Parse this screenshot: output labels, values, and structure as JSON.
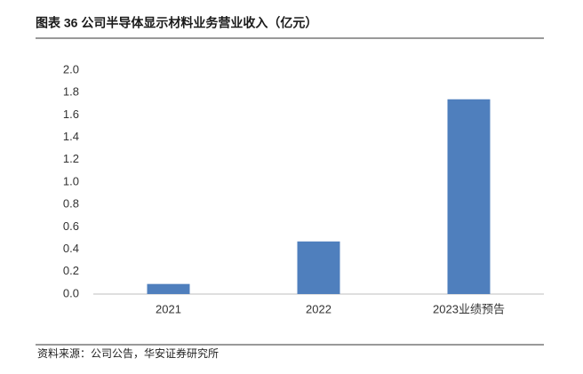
{
  "chart_data": {
    "type": "bar",
    "title": "图表 36 公司半导体显示材料业务营业收入（亿元）",
    "categories": [
      "2021",
      "2022",
      "2023业绩预告"
    ],
    "values": [
      0.09,
      0.47,
      1.74
    ],
    "color": "#4f7fbd",
    "ylim": [
      0,
      2
    ],
    "yticks": [
      {
        "value": 0,
        "label": "0.0"
      },
      0.2,
      0.4,
      0.6,
      0.8,
      {
        "value": 1,
        "label": "1.0"
      },
      1.2,
      1.4,
      1.6,
      1.8,
      {
        "value": 2,
        "label": "2.0"
      }
    ],
    "grid": false,
    "source": "资料来源：公司公告，华安证券研究所"
  }
}
